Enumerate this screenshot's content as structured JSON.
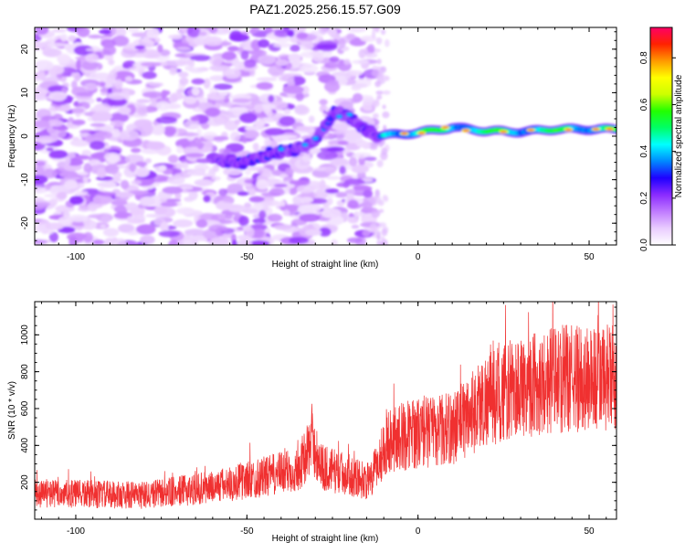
{
  "title": "PAZ1.2025.256.15.57.G09",
  "chart_data": [
    {
      "type": "heatmap",
      "xlabel": "Height of straight line (km)",
      "ylabel": "Frequency (Hz)",
      "xlim": [
        -112,
        58
      ],
      "ylim": [
        -25,
        25
      ],
      "xticks": [
        -100,
        -50,
        0,
        50
      ],
      "yticks": [
        -20,
        -10,
        0,
        10,
        20
      ],
      "colorbar": {
        "label": "Normalized spectral amplitude",
        "range": [
          0,
          0.93
        ],
        "ticks": [
          0.0,
          0.2,
          0.4,
          0.6,
          0.8
        ],
        "colormap": [
          "#ffffff",
          "#e9ccff",
          "#c07bff",
          "#8a2bff",
          "#1f00ff",
          "#0088ff",
          "#00ffff",
          "#00ff66",
          "#22ff00",
          "#ccff00",
          "#ffff00",
          "#ff9900",
          "#ff2200",
          "#ff0066"
        ]
      },
      "ridge": [
        {
          "x": -58,
          "f": -5.5
        },
        {
          "x": -50,
          "f": -6.0
        },
        {
          "x": -42,
          "f": -4.0
        },
        {
          "x": -36,
          "f": -3.2
        },
        {
          "x": -30,
          "f": -1.0
        },
        {
          "x": -27,
          "f": 2.5
        },
        {
          "x": -24,
          "f": 5.5
        },
        {
          "x": -20,
          "f": 4.5
        },
        {
          "x": -16,
          "f": 2.0
        },
        {
          "x": -12,
          "f": 0.0
        },
        {
          "x": -5,
          "f": 0.5
        },
        {
          "x": 0,
          "f": 0.8
        },
        {
          "x": 10,
          "f": 2.0
        },
        {
          "x": 20,
          "f": 1.2
        },
        {
          "x": 30,
          "f": 1.0
        },
        {
          "x": 40,
          "f": 1.6
        },
        {
          "x": 58,
          "f": 1.6
        }
      ]
    },
    {
      "type": "line",
      "xlabel": "Height of straight line (km)",
      "ylabel": "SNR (10 * v/v)",
      "xlim": [
        -112,
        58
      ],
      "ylim": [
        0,
        1180
      ],
      "xticks": [
        -100,
        -50,
        0,
        50
      ],
      "yticks": [
        200,
        400,
        600,
        800,
        1000
      ],
      "series": [
        {
          "color": "#f03030",
          "trend": [
            {
              "x": -112,
              "y": 140
            },
            {
              "x": -80,
              "y": 130
            },
            {
              "x": -60,
              "y": 175
            },
            {
              "x": -45,
              "y": 230
            },
            {
              "x": -35,
              "y": 270
            },
            {
              "x": -31,
              "y": 420
            },
            {
              "x": -28,
              "y": 280
            },
            {
              "x": -20,
              "y": 240
            },
            {
              "x": -14,
              "y": 200
            },
            {
              "x": -9,
              "y": 430
            },
            {
              "x": 0,
              "y": 470
            },
            {
              "x": 10,
              "y": 490
            },
            {
              "x": 20,
              "y": 650
            },
            {
              "x": 30,
              "y": 720
            },
            {
              "x": 40,
              "y": 760
            },
            {
              "x": 58,
              "y": 760
            }
          ]
        }
      ]
    }
  ]
}
